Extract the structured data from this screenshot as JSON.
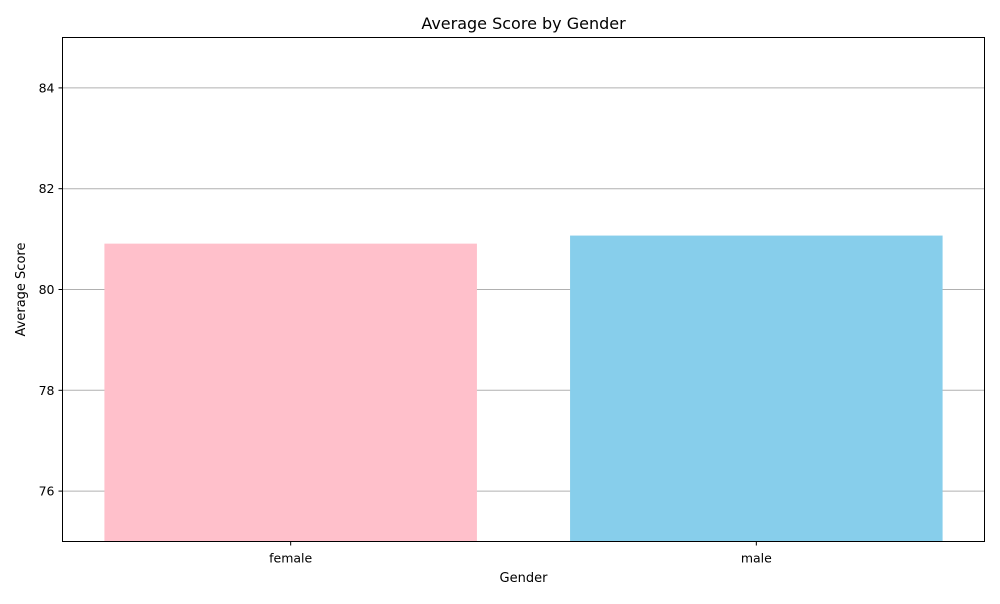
{
  "chart_data": {
    "type": "bar",
    "title": "Average Score by Gender",
    "xlabel": "Gender",
    "ylabel": "Average Score",
    "categories": [
      "female",
      "male"
    ],
    "values": [
      80.91,
      81.07
    ],
    "colors": [
      "#FFC0CB",
      "#87CEEB"
    ],
    "ylim": [
      75,
      85
    ],
    "yticks": [
      76,
      78,
      80,
      82,
      84
    ],
    "grid": "y",
    "grid_color": "#b0b0b0",
    "legend": "none"
  }
}
